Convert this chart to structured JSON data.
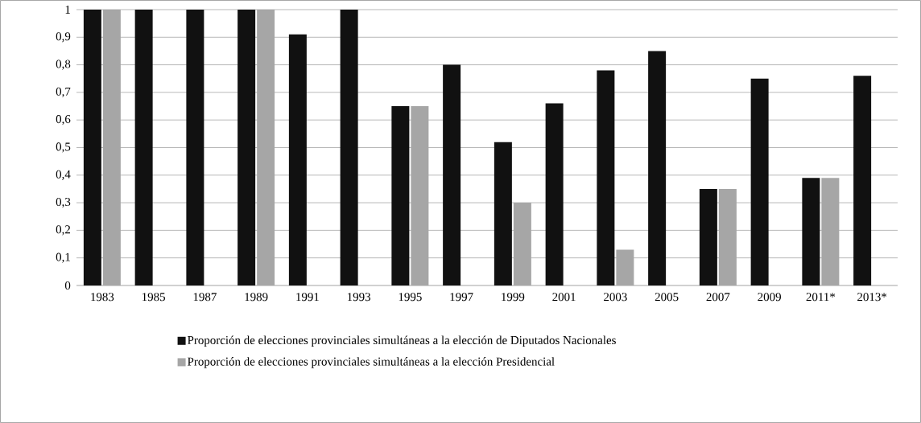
{
  "chart_data": {
    "type": "bar",
    "categories": [
      "1983",
      "1985",
      "1987",
      "1989",
      "1991",
      "1993",
      "1995",
      "1997",
      "1999",
      "2001",
      "2003",
      "2005",
      "2007",
      "2009",
      "2011*",
      "2013*"
    ],
    "series": [
      {
        "name": "Proporción de elecciones provinciales simultáneas a la elección de Diputados Nacionales",
        "color": "#111111",
        "values": [
          1,
          1,
          1,
          1,
          0.91,
          1,
          0.65,
          0.8,
          0.52,
          0.66,
          0.78,
          0.85,
          0.35,
          0.75,
          0.39,
          0.76
        ]
      },
      {
        "name": "Proporción de elecciones provinciales simultáneas a la elección Presidencial",
        "color": "#a6a6a6",
        "values": [
          1,
          null,
          null,
          1,
          null,
          null,
          0.65,
          null,
          0.3,
          null,
          0.13,
          null,
          0.35,
          null,
          0.39,
          null
        ]
      }
    ],
    "ylim": [
      0,
      1
    ],
    "yticks": [
      0,
      {
        "value": 0.1,
        "label": "0,1"
      },
      {
        "value": 0.2,
        "label": "0,2"
      },
      {
        "value": 0.3,
        "label": "0,3"
      },
      {
        "value": 0.4,
        "label": "0,4"
      },
      {
        "value": 0.5,
        "label": "0,5"
      },
      {
        "value": 0.6,
        "label": "0,6"
      },
      {
        "value": 0.7,
        "label": "0,7"
      },
      {
        "value": 0.8,
        "label": "0,8"
      },
      {
        "value": 0.9,
        "label": "0,9"
      },
      1
    ],
    "grid": "y",
    "legend": "bottom"
  }
}
